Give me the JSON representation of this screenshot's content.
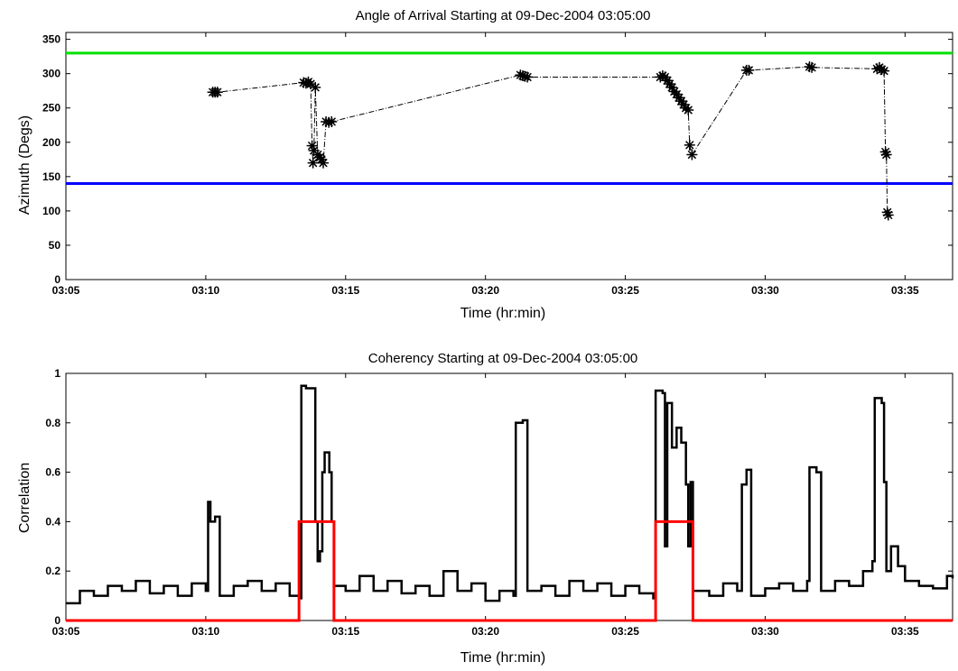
{
  "chart_data": [
    {
      "type": "scatter",
      "title": "Angle of Arrival Starting at 09-Dec-2004 03:05:00",
      "xlabel": "Time (hr:min)",
      "ylabel": "Azimuth (Degs)",
      "xlim": [
        "03:05",
        "03:36:42"
      ],
      "ylim": [
        0,
        360
      ],
      "xticks": [
        "03:05",
        "03:10",
        "03:15",
        "03:20",
        "03:25",
        "03:30",
        "03:35"
      ],
      "yticks": [
        0,
        50,
        100,
        150,
        200,
        250,
        300,
        350
      ],
      "grid": false,
      "reference_lines": [
        {
          "y": 330,
          "color": "#00e000"
        },
        {
          "y": 140,
          "color": "#0000ff"
        }
      ],
      "series": [
        {
          "marker": "*",
          "color": "#000000",
          "linestyle": "dash-dot",
          "points": [
            [
              "03:10:15",
              273
            ],
            [
              "03:10:20",
              273
            ],
            [
              "03:10:25",
              273
            ],
            [
              "03:13:30",
              287
            ],
            [
              "03:13:35",
              286
            ],
            [
              "03:13:40",
              288
            ],
            [
              "03:13:45",
              285
            ],
            [
              "03:13:48",
              195
            ],
            [
              "03:13:50",
              170
            ],
            [
              "03:13:52",
              188
            ],
            [
              "03:13:55",
              280
            ],
            [
              "03:14:00",
              182
            ],
            [
              "03:14:05",
              178
            ],
            [
              "03:14:08",
              175
            ],
            [
              "03:14:12",
              170
            ],
            [
              "03:14:18",
              230
            ],
            [
              "03:14:24",
              229
            ],
            [
              "03:14:30",
              230
            ],
            [
              "03:21:15",
              298
            ],
            [
              "03:21:20",
              297
            ],
            [
              "03:21:25",
              296
            ],
            [
              "03:21:30",
              295
            ],
            [
              "03:26:15",
              295
            ],
            [
              "03:26:20",
              297
            ],
            [
              "03:26:25",
              295
            ],
            [
              "03:26:30",
              290
            ],
            [
              "03:26:35",
              285
            ],
            [
              "03:26:40",
              280
            ],
            [
              "03:26:45",
              274
            ],
            [
              "03:26:50",
              270
            ],
            [
              "03:26:55",
              265
            ],
            [
              "03:27:00",
              260
            ],
            [
              "03:27:05",
              255
            ],
            [
              "03:27:10",
              250
            ],
            [
              "03:27:15",
              247
            ],
            [
              "03:27:18",
              196
            ],
            [
              "03:27:23",
              182
            ],
            [
              "03:29:20",
              305
            ],
            [
              "03:29:25",
              305
            ],
            [
              "03:31:35",
              310
            ],
            [
              "03:31:40",
              309
            ],
            [
              "03:34:00",
              307
            ],
            [
              "03:34:05",
              309
            ],
            [
              "03:34:10",
              306
            ],
            [
              "03:34:15",
              304
            ],
            [
              "03:34:18",
              186
            ],
            [
              "03:34:20",
              182
            ],
            [
              "03:34:22",
              98
            ],
            [
              "03:34:24",
              94
            ]
          ]
        }
      ]
    },
    {
      "type": "line",
      "title": "Coherency Starting at 09-Dec-2004 03:05:00",
      "xlabel": "Time (hr:min)",
      "ylabel": "Correlation",
      "xlim": [
        "03:05",
        "03:36:42"
      ],
      "ylim": [
        0,
        1
      ],
      "xticks": [
        "03:05",
        "03:10",
        "03:15",
        "03:20",
        "03:25",
        "03:30",
        "03:35"
      ],
      "yticks": [
        0,
        0.2,
        0.4,
        0.6,
        0.8,
        1
      ],
      "grid": false,
      "series": [
        {
          "color": "#000000",
          "linestyle": "step",
          "points": [
            [
              "03:05:00",
              0.07
            ],
            [
              "03:05:30",
              0.12
            ],
            [
              "03:06:00",
              0.1
            ],
            [
              "03:06:30",
              0.14
            ],
            [
              "03:07:00",
              0.12
            ],
            [
              "03:07:30",
              0.16
            ],
            [
              "03:08:00",
              0.11
            ],
            [
              "03:08:30",
              0.14
            ],
            [
              "03:09:00",
              0.1
            ],
            [
              "03:09:30",
              0.15
            ],
            [
              "03:10:00",
              0.12
            ],
            [
              "03:10:05",
              0.48
            ],
            [
              "03:10:10",
              0.4
            ],
            [
              "03:10:20",
              0.42
            ],
            [
              "03:10:30",
              0.1
            ],
            [
              "03:11:00",
              0.14
            ],
            [
              "03:11:30",
              0.16
            ],
            [
              "03:12:00",
              0.12
            ],
            [
              "03:12:30",
              0.15
            ],
            [
              "03:13:00",
              0.1
            ],
            [
              "03:13:20",
              0.09
            ],
            [
              "03:13:25",
              0.95
            ],
            [
              "03:13:35",
              0.94
            ],
            [
              "03:13:50",
              0.94
            ],
            [
              "03:13:55",
              0.4
            ],
            [
              "03:14:00",
              0.24
            ],
            [
              "03:14:05",
              0.28
            ],
            [
              "03:14:10",
              0.6
            ],
            [
              "03:14:15",
              0.68
            ],
            [
              "03:14:25",
              0.6
            ],
            [
              "03:14:30",
              0.4
            ],
            [
              "03:14:35",
              0.14
            ],
            [
              "03:15:00",
              0.12
            ],
            [
              "03:15:30",
              0.18
            ],
            [
              "03:16:00",
              0.12
            ],
            [
              "03:16:30",
              0.16
            ],
            [
              "03:17:00",
              0.11
            ],
            [
              "03:17:30",
              0.14
            ],
            [
              "03:18:00",
              0.1
            ],
            [
              "03:18:30",
              0.2
            ],
            [
              "03:19:00",
              0.12
            ],
            [
              "03:19:30",
              0.15
            ],
            [
              "03:20:00",
              0.08
            ],
            [
              "03:20:30",
              0.12
            ],
            [
              "03:21:00",
              0.1
            ],
            [
              "03:21:05",
              0.8
            ],
            [
              "03:21:20",
              0.81
            ],
            [
              "03:21:30",
              0.12
            ],
            [
              "03:22:00",
              0.14
            ],
            [
              "03:22:30",
              0.1
            ],
            [
              "03:23:00",
              0.16
            ],
            [
              "03:23:30",
              0.12
            ],
            [
              "03:24:00",
              0.15
            ],
            [
              "03:24:30",
              0.1
            ],
            [
              "03:25:00",
              0.14
            ],
            [
              "03:25:30",
              0.11
            ],
            [
              "03:26:00",
              0.09
            ],
            [
              "03:26:05",
              0.93
            ],
            [
              "03:26:20",
              0.92
            ],
            [
              "03:26:25",
              0.3
            ],
            [
              "03:26:30",
              0.88
            ],
            [
              "03:26:40",
              0.7
            ],
            [
              "03:26:50",
              0.78
            ],
            [
              "03:27:00",
              0.72
            ],
            [
              "03:27:10",
              0.55
            ],
            [
              "03:27:15",
              0.3
            ],
            [
              "03:27:20",
              0.56
            ],
            [
              "03:27:25",
              0.12
            ],
            [
              "03:28:00",
              0.1
            ],
            [
              "03:28:30",
              0.15
            ],
            [
              "03:29:00",
              0.12
            ],
            [
              "03:29:10",
              0.55
            ],
            [
              "03:29:20",
              0.61
            ],
            [
              "03:29:30",
              0.1
            ],
            [
              "03:30:00",
              0.13
            ],
            [
              "03:30:30",
              0.15
            ],
            [
              "03:31:00",
              0.12
            ],
            [
              "03:31:30",
              0.16
            ],
            [
              "03:31:35",
              0.62
            ],
            [
              "03:31:50",
              0.6
            ],
            [
              "03:32:00",
              0.12
            ],
            [
              "03:32:30",
              0.16
            ],
            [
              "03:33:00",
              0.14
            ],
            [
              "03:33:30",
              0.2
            ],
            [
              "03:33:50",
              0.24
            ],
            [
              "03:33:55",
              0.9
            ],
            [
              "03:34:10",
              0.88
            ],
            [
              "03:34:15",
              0.56
            ],
            [
              "03:34:20",
              0.2
            ],
            [
              "03:34:30",
              0.3
            ],
            [
              "03:34:45",
              0.22
            ],
            [
              "03:35:00",
              0.16
            ],
            [
              "03:35:30",
              0.14
            ],
            [
              "03:36:00",
              0.13
            ],
            [
              "03:36:30",
              0.18
            ],
            [
              "03:36:42",
              0.17
            ]
          ]
        },
        {
          "color": "#ff0000",
          "linestyle": "step",
          "points": [
            [
              "03:05:00",
              0
            ],
            [
              "03:13:20",
              0
            ],
            [
              "03:13:20",
              0.4
            ],
            [
              "03:14:35",
              0.4
            ],
            [
              "03:14:35",
              0
            ],
            [
              "03:26:05",
              0
            ],
            [
              "03:26:05",
              0.4
            ],
            [
              "03:27:25",
              0.4
            ],
            [
              "03:27:25",
              0
            ],
            [
              "03:36:42",
              0
            ]
          ]
        }
      ]
    }
  ]
}
